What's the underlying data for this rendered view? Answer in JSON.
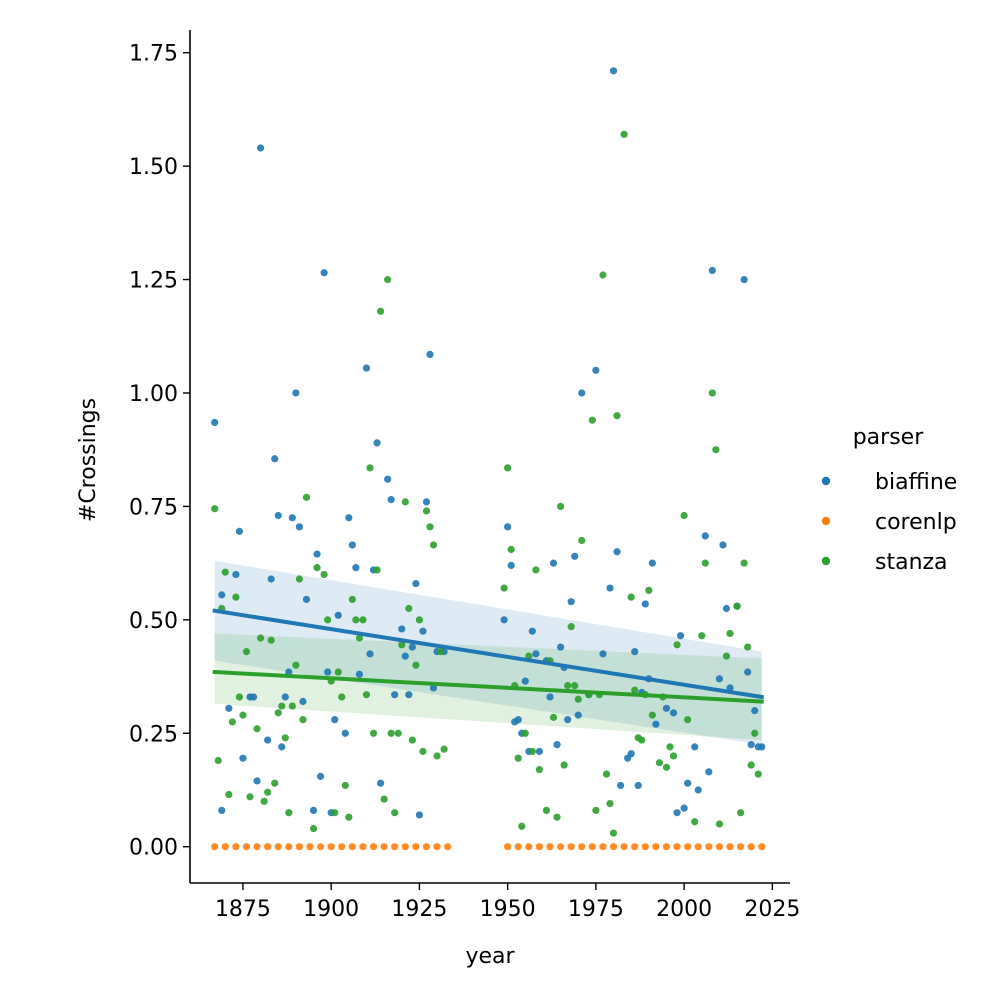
{
  "chart_data": {
    "type": "scatter",
    "title": "",
    "xlabel": "year",
    "ylabel": "#Crossings",
    "xlim": [
      1860,
      2030
    ],
    "ylim": [
      -0.08,
      1.8
    ],
    "x_ticks": [
      1875,
      1900,
      1925,
      1950,
      1975,
      2000,
      2025
    ],
    "y_ticks": [
      0.0,
      0.25,
      0.5,
      0.75,
      1.0,
      1.25,
      1.5,
      1.75
    ],
    "x_tick_labels": [
      "1875",
      "1900",
      "1925",
      "1950",
      "1975",
      "2000",
      "2025"
    ],
    "y_tick_labels": [
      "0.00",
      "0.25",
      "0.50",
      "0.75",
      "1.00",
      "1.25",
      "1.50",
      "1.75"
    ],
    "grid": false,
    "legend": {
      "title": "parser",
      "placement": "right"
    },
    "series": [
      {
        "name": "biaffine",
        "color": "#1f77b4",
        "x": [
          1867,
          1869,
          1869,
          1871,
          1873,
          1874,
          1875,
          1877,
          1878,
          1879,
          1880,
          1882,
          1883,
          1884,
          1885,
          1886,
          1887,
          1888,
          1889,
          1890,
          1891,
          1892,
          1893,
          1895,
          1896,
          1897,
          1898,
          1899,
          1900,
          1901,
          1902,
          1904,
          1905,
          1906,
          1907,
          1908,
          1910,
          1911,
          1912,
          1913,
          1914,
          1916,
          1917,
          1918,
          1920,
          1921,
          1922,
          1923,
          1924,
          1925,
          1926,
          1927,
          1928,
          1929,
          1930,
          1932,
          1949,
          1950,
          1951,
          1952,
          1953,
          1954,
          1955,
          1956,
          1957,
          1958,
          1959,
          1961,
          1962,
          1963,
          1964,
          1965,
          1966,
          1967,
          1968,
          1969,
          1970,
          1971,
          1973,
          1975,
          1977,
          1979,
          1980,
          1981,
          1982,
          1984,
          1985,
          1986,
          1987,
          1988,
          1989,
          1990,
          1991,
          1992,
          1995,
          1997,
          1998,
          1999,
          2000,
          2001,
          2003,
          2004,
          2006,
          2007,
          2008,
          2010,
          2011,
          2012,
          2013,
          2015,
          2017,
          2018,
          2019,
          2020,
          2021,
          2022
        ],
        "y": [
          0.935,
          0.08,
          0.555,
          0.305,
          0.6,
          0.695,
          0.195,
          0.33,
          0.33,
          0.145,
          1.54,
          0.235,
          0.59,
          0.855,
          0.73,
          0.22,
          0.33,
          0.385,
          0.725,
          1.0,
          0.705,
          0.32,
          0.545,
          0.08,
          0.645,
          0.155,
          1.265,
          0.385,
          0.075,
          0.28,
          0.51,
          0.25,
          0.725,
          0.665,
          0.615,
          0.38,
          1.055,
          0.425,
          0.61,
          0.89,
          0.14,
          0.81,
          0.765,
          0.335,
          0.48,
          0.42,
          0.335,
          0.44,
          0.58,
          0.07,
          0.475,
          0.76,
          1.085,
          0.35,
          0.43,
          0.43,
          0.5,
          0.705,
          0.62,
          0.275,
          0.28,
          0.25,
          0.365,
          0.21,
          0.475,
          0.425,
          0.21,
          0.41,
          0.33,
          0.625,
          0.225,
          0.44,
          0.395,
          0.28,
          0.54,
          0.64,
          0.29,
          1.0,
          0.335,
          1.05,
          0.425,
          0.57,
          1.71,
          0.65,
          0.135,
          0.195,
          0.205,
          0.43,
          0.135,
          0.34,
          0.535,
          0.37,
          0.625,
          0.27,
          0.305,
          0.295,
          0.075,
          0.465,
          0.085,
          0.14,
          0.22,
          0.125,
          0.685,
          0.165,
          1.27,
          0.37,
          0.665,
          0.525,
          0.35,
          0.53,
          1.25,
          0.385,
          0.225,
          0.3,
          0.22,
          0.22
        ]
      },
      {
        "name": "corenlp",
        "color": "#ff7f0e",
        "x": [
          1867,
          1870,
          1873,
          1876,
          1879,
          1882,
          1885,
          1888,
          1891,
          1894,
          1897,
          1900,
          1903,
          1906,
          1909,
          1912,
          1915,
          1918,
          1921,
          1924,
          1927,
          1930,
          1933,
          1950,
          1953,
          1956,
          1959,
          1962,
          1965,
          1968,
          1971,
          1974,
          1977,
          1980,
          1983,
          1986,
          1989,
          1992,
          1995,
          1998,
          2001,
          2004,
          2007,
          2010,
          2013,
          2016,
          2019,
          2022
        ],
        "y": [
          0,
          0,
          0,
          0,
          0,
          0,
          0,
          0,
          0,
          0,
          0,
          0,
          0,
          0,
          0,
          0,
          0,
          0,
          0,
          0,
          0,
          0,
          0,
          0,
          0,
          0,
          0,
          0,
          0,
          0,
          0,
          0,
          0,
          0,
          0,
          0,
          0,
          0,
          0,
          0,
          0,
          0,
          0,
          0,
          0,
          0,
          0,
          0
        ]
      },
      {
        "name": "stanza",
        "color": "#2ca02c",
        "x": [
          1867,
          1868,
          1869,
          1870,
          1871,
          1872,
          1873,
          1874,
          1875,
          1876,
          1877,
          1879,
          1880,
          1881,
          1882,
          1883,
          1884,
          1885,
          1886,
          1887,
          1888,
          1889,
          1890,
          1891,
          1892,
          1893,
          1895,
          1896,
          1898,
          1899,
          1900,
          1901,
          1902,
          1903,
          1904,
          1905,
          1906,
          1907,
          1908,
          1909,
          1910,
          1911,
          1912,
          1913,
          1914,
          1915,
          1916,
          1917,
          1918,
          1919,
          1920,
          1921,
          1922,
          1923,
          1924,
          1925,
          1926,
          1927,
          1928,
          1929,
          1930,
          1931,
          1932,
          1949,
          1950,
          1951,
          1952,
          1953,
          1954,
          1955,
          1956,
          1957,
          1958,
          1959,
          1961,
          1962,
          1963,
          1964,
          1965,
          1966,
          1967,
          1968,
          1969,
          1970,
          1971,
          1973,
          1974,
          1975,
          1976,
          1977,
          1978,
          1979,
          1980,
          1981,
          1983,
          1985,
          1986,
          1987,
          1988,
          1989,
          1990,
          1991,
          1993,
          1994,
          1995,
          1996,
          1997,
          1998,
          2000,
          2001,
          2003,
          2005,
          2006,
          2008,
          2009,
          2010,
          2012,
          2013,
          2015,
          2016,
          2017,
          2018,
          2019,
          2020,
          2021
        ],
        "y": [
          0.745,
          0.19,
          0.525,
          0.605,
          0.115,
          0.275,
          0.55,
          0.33,
          0.29,
          0.43,
          0.11,
          0.26,
          0.46,
          0.1,
          0.12,
          0.455,
          0.14,
          0.295,
          0.31,
          0.24,
          0.075,
          0.31,
          0.4,
          0.59,
          0.28,
          0.77,
          0.04,
          0.615,
          0.6,
          0.5,
          0.365,
          0.075,
          0.385,
          0.33,
          0.135,
          0.065,
          0.545,
          0.5,
          0.46,
          0.5,
          0.335,
          0.835,
          0.25,
          0.61,
          1.18,
          0.105,
          1.25,
          0.25,
          0.075,
          0.25,
          0.445,
          0.76,
          0.525,
          0.235,
          0.4,
          0.5,
          0.21,
          0.74,
          0.705,
          0.665,
          0.2,
          0.43,
          0.215,
          0.57,
          0.835,
          0.655,
          0.355,
          0.195,
          0.045,
          0.25,
          0.42,
          0.21,
          0.61,
          0.17,
          0.08,
          0.41,
          0.285,
          0.065,
          0.75,
          0.18,
          0.355,
          0.485,
          0.355,
          0.325,
          0.675,
          0.335,
          0.94,
          0.08,
          0.335,
          1.26,
          0.16,
          0.095,
          0.03,
          0.95,
          1.57,
          0.55,
          0.345,
          0.24,
          0.235,
          0.335,
          0.565,
          0.29,
          0.185,
          0.33,
          0.175,
          0.22,
          0.2,
          0.445,
          0.73,
          0.28,
          0.055,
          0.465,
          0.625,
          1.0,
          0.875,
          0.05,
          0.42,
          0.47,
          0.53,
          0.075,
          0.625,
          0.44,
          0.18,
          0.25,
          0.16
        ]
      }
    ],
    "regression": [
      {
        "series": "biaffine",
        "x": [
          1867,
          2022
        ],
        "y": [
          0.52,
          0.33
        ],
        "ci_start": [
          0.41,
          0.63
        ],
        "ci_end": [
          0.225,
          0.43
        ]
      },
      {
        "series": "stanza",
        "x": [
          1867,
          2022
        ],
        "y": [
          0.385,
          0.32
        ],
        "ci_start": [
          0.315,
          0.47
        ],
        "ci_end": [
          0.235,
          0.415
        ]
      }
    ]
  }
}
